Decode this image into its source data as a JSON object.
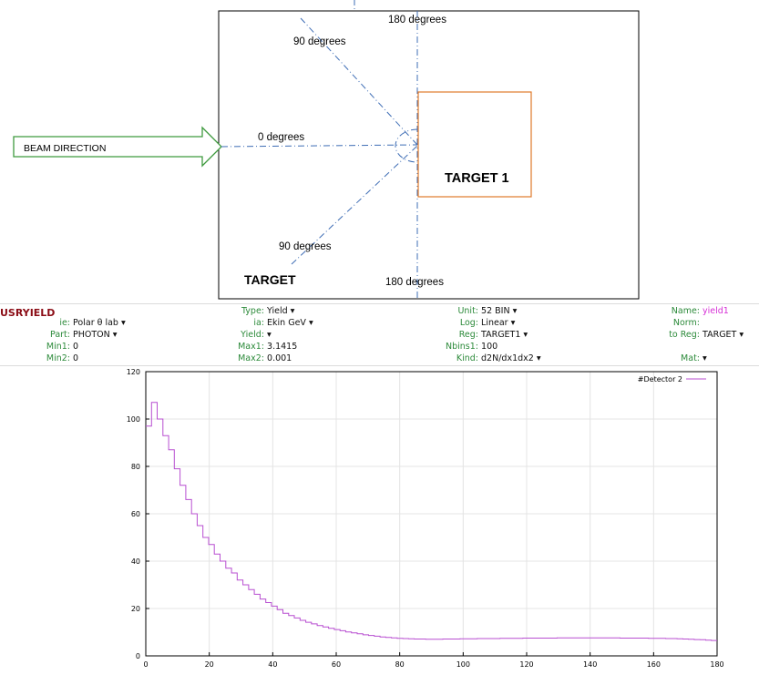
{
  "diagram": {
    "beam_label": "BEAM DIRECTION",
    "angle_labels": {
      "top_180": "180 degrees",
      "top_90": "90 degrees",
      "mid_0": "0 degrees",
      "bottom_90": "90 degrees",
      "bottom_180": "180 degrees"
    },
    "region_label": "TARGET",
    "target_label": "TARGET 1",
    "colors": {
      "axis": "#3e6db5",
      "target_box": "#e07a2a",
      "arrow": "#3f9a3f"
    }
  },
  "card": {
    "title": "USRYIELD",
    "rows": [
      [
        {
          "k": "ie:",
          "v": "Polar θ lab ▾"
        },
        {
          "k": "Type:",
          "v": "Yield ▾"
        },
        {
          "k": "Unit:",
          "v": "52 BIN ▾"
        },
        {
          "k": "Name:",
          "v": "yield1"
        }
      ],
      [
        {
          "k": "Part:",
          "v": "PHOTON ▾"
        },
        {
          "k": "ia:",
          "v": "Ekin GeV ▾"
        },
        {
          "k": "Log:",
          "v": "Linear ▾"
        },
        {
          "k": "Norm:",
          "v": ""
        }
      ],
      [
        {
          "k": "Min1:",
          "v": "0"
        },
        {
          "k": "Yield:",
          "v": "▾"
        },
        {
          "k": "Reg:",
          "v": "TARGET1 ▾"
        },
        {
          "k": "to Reg:",
          "v": "TARGET ▾"
        }
      ],
      [
        {
          "k": "Min2:",
          "v": "0"
        },
        {
          "k": "Max1:",
          "v": "3.1415"
        },
        {
          "k": "Nbins1:",
          "v": "100"
        },
        {
          "k": "Mat:",
          "v": "▾"
        }
      ],
      [
        {
          "k": "",
          "v": ""
        },
        {
          "k": "Max2:",
          "v": "0.001"
        },
        {
          "k": "Kind:",
          "v": "d2N/dx1dx2 ▾"
        },
        {
          "k": "",
          "v": ""
        }
      ]
    ]
  },
  "chart_data": {
    "type": "line",
    "title": "",
    "xlabel": "",
    "ylabel": "",
    "xlim": [
      0,
      180
    ],
    "ylim": [
      0,
      120
    ],
    "x_ticks": [
      0,
      20,
      40,
      60,
      80,
      100,
      120,
      140,
      160,
      180
    ],
    "y_ticks": [
      0,
      20,
      40,
      60,
      80,
      100,
      120
    ],
    "legend": "top-right",
    "series": [
      {
        "name": "#Detector 2",
        "color": "#b84fd1",
        "step": 1.8,
        "x_start": 0,
        "values": [
          97,
          107,
          100,
          93,
          87,
          79,
          72,
          66,
          60,
          55,
          50,
          47,
          43,
          40,
          37,
          35,
          32,
          30,
          28,
          26,
          24,
          22.5,
          21,
          19.5,
          18,
          17,
          16,
          15,
          14.2,
          13.5,
          12.8,
          12.2,
          11.6,
          11.1,
          10.6,
          10.1,
          9.7,
          9.3,
          8.9,
          8.6,
          8.3,
          8.0,
          7.8,
          7.6,
          7.4,
          7.3,
          7.2,
          7.1,
          7.1,
          7.0,
          7.0,
          7.0,
          7.1,
          7.1,
          7.1,
          7.2,
          7.2,
          7.2,
          7.3,
          7.3,
          7.3,
          7.3,
          7.4,
          7.4,
          7.4,
          7.4,
          7.5,
          7.5,
          7.5,
          7.5,
          7.5,
          7.5,
          7.6,
          7.6,
          7.6,
          7.6,
          7.6,
          7.6,
          7.6,
          7.6,
          7.6,
          7.6,
          7.6,
          7.5,
          7.5,
          7.5,
          7.5,
          7.5,
          7.4,
          7.4,
          7.4,
          7.3,
          7.3,
          7.2,
          7.1,
          7.0,
          6.9,
          6.8,
          6.6,
          6.5
        ]
      }
    ]
  }
}
